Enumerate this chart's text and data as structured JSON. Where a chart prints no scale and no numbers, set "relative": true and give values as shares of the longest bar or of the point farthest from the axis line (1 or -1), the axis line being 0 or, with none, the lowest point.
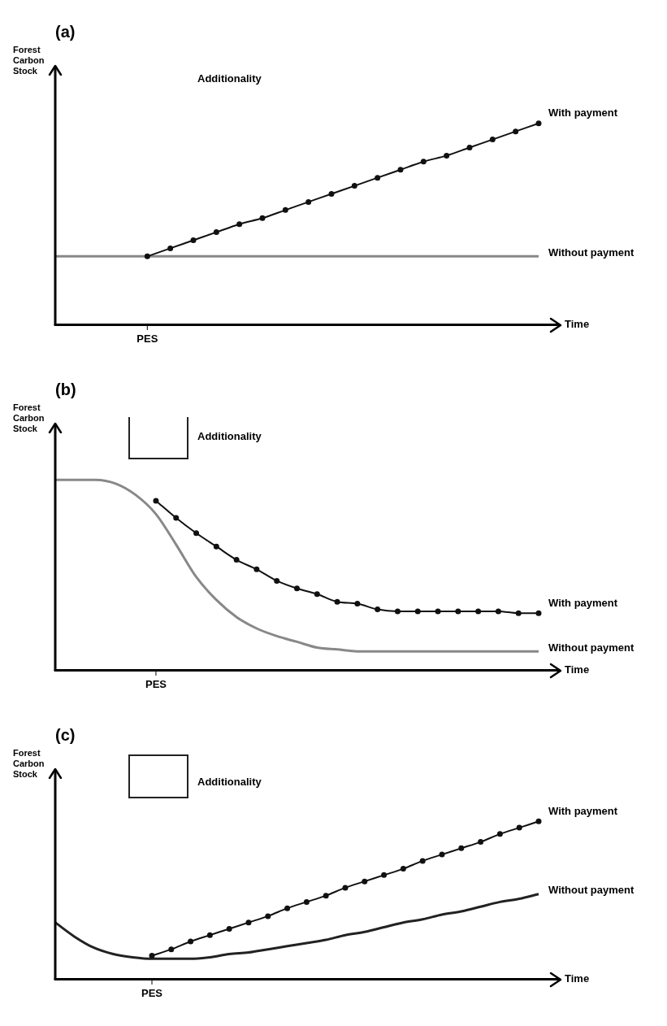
{
  "chart_data": [
    {
      "type": "line",
      "title": "(a)",
      "ylabel": "Forest Carbon Stock",
      "xlabel": "Time",
      "relative": true,
      "legend": false,
      "grid": false,
      "annotations": [
        "Additionality",
        "PES"
      ],
      "categories": [
        null,
        null,
        null,
        null,
        null,
        null,
        null,
        null,
        null,
        null,
        null,
        null,
        null,
        null,
        null,
        null,
        null,
        null,
        null,
        null,
        null,
        null
      ],
      "series": [
        {
          "name": "With payment",
          "color": "#111111",
          "marker": "circle",
          "values": [
            null,
            null,
            null,
            null,
            0.34,
            0.38,
            0.42,
            0.46,
            0.5,
            0.53,
            0.57,
            0.61,
            0.65,
            0.69,
            0.73,
            0.77,
            0.81,
            0.84,
            0.88,
            0.92,
            0.96,
            1.0
          ]
        },
        {
          "name": "Without payment",
          "color": "#888888",
          "marker": "none",
          "values": [
            0.34,
            0.34,
            0.34,
            0.34,
            0.34,
            0.34,
            0.34,
            0.34,
            0.34,
            0.34,
            0.34,
            0.34,
            0.34,
            0.34,
            0.34,
            0.34,
            0.34,
            0.34,
            0.34,
            0.34,
            0.34,
            0.34
          ]
        }
      ]
    },
    {
      "type": "line",
      "title": "(b)",
      "ylabel": "Forest Carbon Stock",
      "xlabel": "Time",
      "relative": true,
      "legend": false,
      "grid": false,
      "annotations": [
        "Additionality",
        "PES"
      ],
      "categories": [
        null,
        null,
        null,
        null,
        null,
        null,
        null,
        null,
        null,
        null,
        null,
        null,
        null,
        null,
        null,
        null,
        null,
        null,
        null,
        null,
        null,
        null,
        null,
        null,
        null
      ],
      "series": [
        {
          "name": "With payment",
          "color": "#111111",
          "marker": "circle",
          "values": [
            null,
            null,
            null,
            null,
            null,
            0.89,
            0.8,
            0.72,
            0.65,
            0.58,
            0.53,
            0.47,
            0.43,
            0.4,
            0.36,
            0.35,
            0.32,
            0.31,
            0.31,
            0.31,
            0.31,
            0.31,
            0.31,
            0.3,
            0.3
          ]
        },
        {
          "name": "Without payment",
          "color": "#888888",
          "marker": "none",
          "values": [
            1.0,
            1.0,
            1.0,
            0.98,
            0.92,
            0.82,
            0.66,
            0.49,
            0.37,
            0.28,
            0.22,
            0.18,
            0.15,
            0.12,
            0.11,
            0.1,
            0.1,
            0.1,
            0.1,
            0.1,
            0.1,
            0.1,
            0.1,
            0.1,
            0.1
          ]
        }
      ]
    },
    {
      "type": "line",
      "title": "(c)",
      "ylabel": "Forest Carbon Stock",
      "xlabel": "Time",
      "relative": true,
      "legend": false,
      "grid": false,
      "annotations": [
        "Additionality",
        "PES"
      ],
      "categories": [
        null,
        null,
        null,
        null,
        null,
        null,
        null,
        null,
        null,
        null,
        null,
        null,
        null,
        null,
        null,
        null,
        null,
        null,
        null,
        null,
        null,
        null,
        null,
        null,
        null,
        null
      ],
      "series": [
        {
          "name": "With payment",
          "color": "#111111",
          "marker": "circle",
          "values": [
            null,
            null,
            null,
            null,
            null,
            0.15,
            0.19,
            0.24,
            0.28,
            0.32,
            0.36,
            0.4,
            0.45,
            0.49,
            0.53,
            0.58,
            0.62,
            0.66,
            0.7,
            0.75,
            0.79,
            0.83,
            0.87,
            0.92,
            0.96,
            1.0
          ]
        },
        {
          "name": "Without payment",
          "color": "#222222",
          "marker": "none",
          "values": [
            0.36,
            0.27,
            0.2,
            0.16,
            0.14,
            0.13,
            0.13,
            0.13,
            0.14,
            0.16,
            0.17,
            0.19,
            0.21,
            0.23,
            0.25,
            0.28,
            0.3,
            0.33,
            0.36,
            0.38,
            0.41,
            0.43,
            0.46,
            0.49,
            0.51,
            0.54
          ]
        }
      ]
    }
  ]
}
